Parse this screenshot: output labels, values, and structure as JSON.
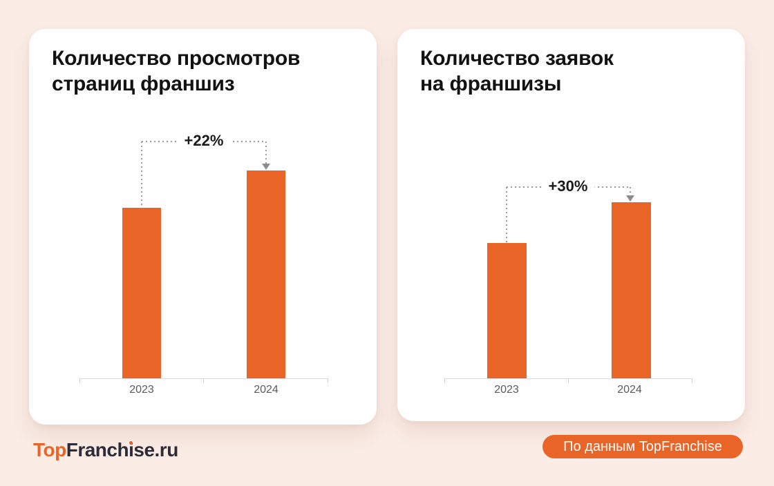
{
  "page": {
    "background_color": "#FBECE6",
    "accent_color": "#E86427"
  },
  "chart_data": [
    {
      "type": "bar",
      "title": "Количество просмотров страниц франшиз",
      "title_lines": [
        "Количество просмотров",
        "страниц франшиз"
      ],
      "categories": [
        "2023",
        "2024"
      ],
      "values": [
        100,
        122
      ],
      "values_note": "relative index, 2023 = 100 (no absolute y-axis values shown)",
      "annotation": "+22%",
      "bar_color": "#E86427",
      "xlabel": "",
      "ylabel": "",
      "grid": false,
      "yaxis_visible": false,
      "legend": false
    },
    {
      "type": "bar",
      "title": "Количество заявок на франшизы",
      "title_lines": [
        "Количество заявок",
        "на франшизы"
      ],
      "categories": [
        "2023",
        "2024"
      ],
      "values": [
        100,
        130
      ],
      "values_note": "relative index, 2023 = 100 (no absolute y-axis values shown)",
      "annotation": "+30%",
      "bar_color": "#E86427",
      "xlabel": "",
      "ylabel": "",
      "grid": false,
      "yaxis_visible": false,
      "legend": false
    }
  ],
  "footer": {
    "logo_parts": {
      "top": "Top",
      "mid": "Franch",
      "i": "i",
      "rest": "se.ru"
    },
    "badge_label": "По данным TopFranchise"
  }
}
